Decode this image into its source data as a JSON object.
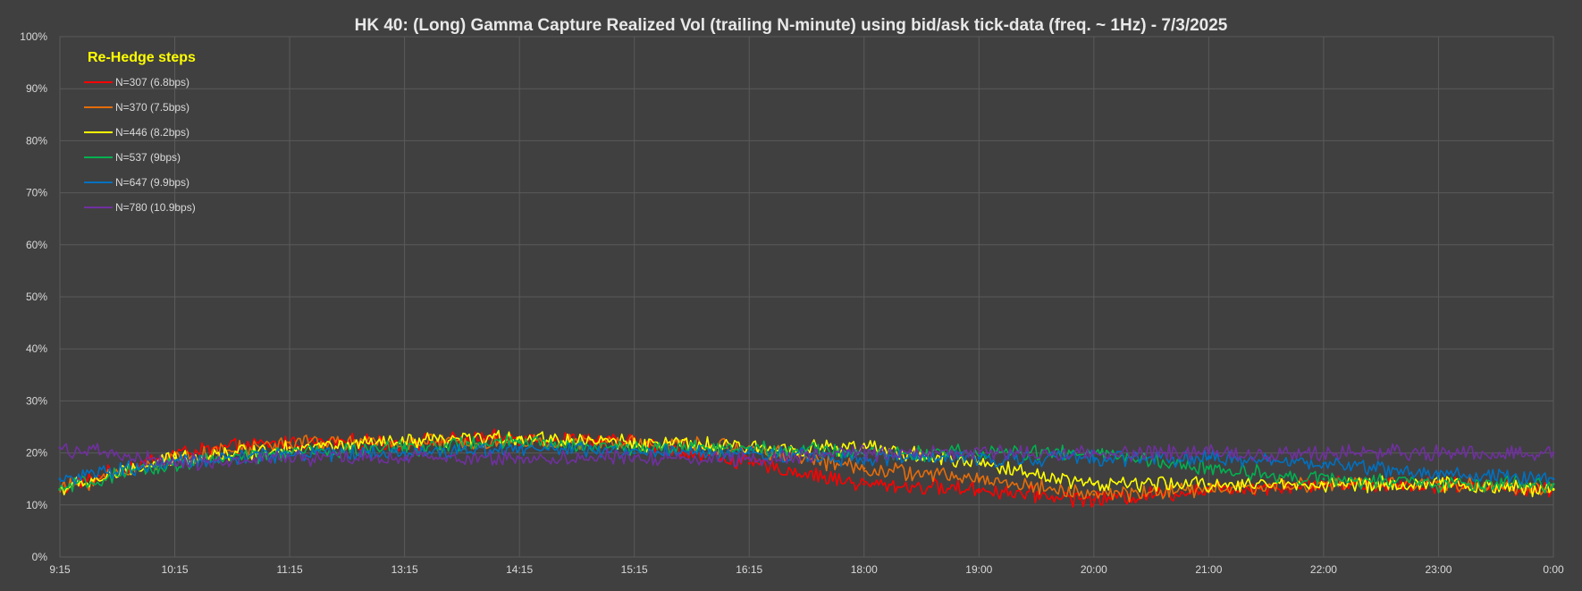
{
  "chart_data": {
    "type": "line",
    "title": "HK 40: (Long) Gamma Capture Realized Vol (trailing N-minute) using bid/ask tick-data (freq. ~ 1Hz) - 7/3/2025",
    "xlabel": "",
    "ylabel": "",
    "x": [
      "9:15",
      "10:15",
      "11:15",
      "13:15",
      "14:15",
      "15:15",
      "16:15",
      "18:00",
      "19:00",
      "20:00",
      "21:00",
      "22:00",
      "23:00",
      "0:00"
    ],
    "y_ticks": [
      "0%",
      "10%",
      "20%",
      "30%",
      "40%",
      "50%",
      "60%",
      "70%",
      "80%",
      "90%",
      "100%"
    ],
    "ylim": [
      0,
      100
    ],
    "y_unit": "%",
    "grid": true,
    "legend_title": "Re-Hedge steps",
    "legend_position": "top-left",
    "series": [
      {
        "name": "N=307 (6.8bps)",
        "color": "#ff0000",
        "values": [
          13,
          20,
          22,
          22,
          23,
          22,
          18,
          14,
          13,
          11,
          13,
          14,
          14,
          13
        ]
      },
      {
        "name": "N=370 (7.5bps)",
        "color": "#e46c0a",
        "values": [
          13,
          19,
          22,
          22,
          22,
          22,
          21,
          17,
          15,
          12,
          13,
          14,
          14,
          13
        ]
      },
      {
        "name": "N=446 (8.2bps)",
        "color": "#ffff00",
        "values": [
          13,
          19,
          21,
          22,
          23,
          22,
          21,
          21,
          18,
          14,
          14,
          14,
          14,
          13
        ]
      },
      {
        "name": "N=537 (9bps)",
        "color": "#00b050",
        "values": [
          13,
          18,
          20,
          21,
          22,
          21,
          21,
          20,
          20,
          20,
          17,
          15,
          14,
          14
        ]
      },
      {
        "name": "N=647 (9.9bps)",
        "color": "#0070c0",
        "values": [
          15,
          18,
          20,
          20,
          21,
          20,
          20,
          19,
          19,
          19,
          19,
          18,
          16,
          15
        ]
      },
      {
        "name": "N=780 (10.9bps)",
        "color": "#7030a0",
        "values": [
          21,
          18,
          19,
          19,
          19,
          19,
          19,
          20,
          20,
          20,
          20,
          20,
          20,
          20
        ]
      }
    ]
  }
}
